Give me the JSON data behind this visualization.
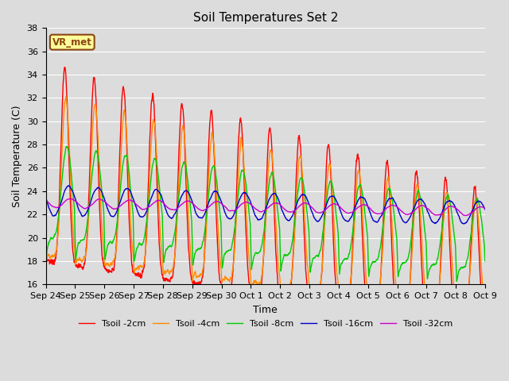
{
  "title": "Soil Temperatures Set 2",
  "xlabel": "Time",
  "ylabel": "Soil Temperature (C)",
  "ylim": [
    16,
    38
  ],
  "yticks": [
    16,
    18,
    20,
    22,
    24,
    26,
    28,
    30,
    32,
    34,
    36,
    38
  ],
  "annotation": "VR_met",
  "bg_color": "#dcdcdc",
  "legend": [
    "Tsoil -2cm",
    "Tsoil -4cm",
    "Tsoil -8cm",
    "Tsoil -16cm",
    "Tsoil -32cm"
  ],
  "colors": [
    "#ff0000",
    "#ff8c00",
    "#00cc00",
    "#0000cc",
    "#cc00cc"
  ],
  "xtick_labels": [
    "Sep 24",
    "Sep 25",
    "Sep 26",
    "Sep 27",
    "Sep 28",
    "Sep 29",
    "Sep 30",
    "Oct 1",
    "Oct 2",
    "Oct 3",
    "Oct 4",
    "Oct 5",
    "Oct 6",
    "Oct 7",
    "Oct 8",
    "Oct 9"
  ],
  "n_days": 15,
  "pts_per_day": 144
}
